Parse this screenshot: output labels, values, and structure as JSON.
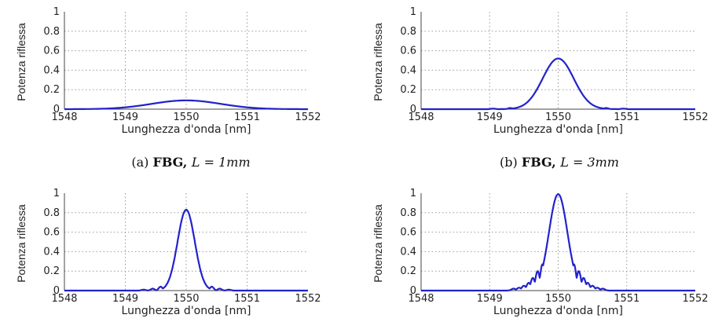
{
  "chart_data": [
    {
      "type": "line",
      "caption_id": "(a)",
      "caption_label": "FBG,",
      "caption_eq": "L = 1mm",
      "xlabel": "Lunghezza d'onda [nm]",
      "ylabel": "Potenza riflessa",
      "xlim": [
        1548,
        1552
      ],
      "ylim": [
        0,
        1
      ],
      "xticks": [
        "1548",
        "1549",
        "1550",
        "1551",
        "1552"
      ],
      "yticks": [
        "0",
        "0.2",
        "0.4",
        "0.6",
        "0.8",
        "1"
      ],
      "grid": true,
      "series": [
        {
          "peak": 0.09,
          "center": 1550,
          "halfwidth": 0.8,
          "sidelobes": []
        }
      ]
    },
    {
      "type": "line",
      "caption_id": "(b)",
      "caption_label": "FBG,",
      "caption_eq": "L = 3mm",
      "xlabel": "Lunghezza d'onda [nm]",
      "ylabel": "Potenza riflessa",
      "xlim": [
        1548,
        1552
      ],
      "ylim": [
        0,
        1
      ],
      "xticks": [
        "1548",
        "1549",
        "1550",
        "1551",
        "1552"
      ],
      "yticks": [
        "0",
        "0.2",
        "0.4",
        "0.6",
        "0.8",
        "1"
      ],
      "grid": true,
      "series": [
        {
          "peak": 0.52,
          "center": 1550,
          "halfwidth": 0.32,
          "sidelobes": [
            [
              1549.55,
              0.03
            ],
            [
              1550.45,
              0.03
            ],
            [
              1549.3,
              0.012
            ],
            [
              1550.7,
              0.012
            ],
            [
              1549.05,
              0.006
            ],
            [
              1550.95,
              0.006
            ]
          ]
        }
      ]
    },
    {
      "type": "line",
      "caption_id": "",
      "caption_label": "",
      "caption_eq": "",
      "xlabel": "Lunghezza d'onda [nm]",
      "ylabel": "Potenza riflessa",
      "xlim": [
        1548,
        1552
      ],
      "ylim": [
        0,
        1
      ],
      "xticks": [
        "1548",
        "1549",
        "1550",
        "1551",
        "1552"
      ],
      "yticks": [
        "0",
        "0.2",
        "0.4",
        "0.6",
        "0.8",
        "1"
      ],
      "grid": true,
      "series": [
        {
          "peak": 0.83,
          "center": 1550,
          "halfwidth": 0.2,
          "sidelobes": [
            [
              1549.73,
              0.1
            ],
            [
              1550.27,
              0.1
            ],
            [
              1549.58,
              0.04
            ],
            [
              1550.42,
              0.04
            ],
            [
              1549.45,
              0.02
            ],
            [
              1550.55,
              0.02
            ],
            [
              1549.3,
              0.01
            ],
            [
              1550.7,
              0.01
            ]
          ]
        }
      ]
    },
    {
      "type": "line",
      "caption_id": "",
      "caption_label": "",
      "caption_eq": "",
      "xlabel": "Lunghezza d'onda [nm]",
      "ylabel": "Potenza riflessa",
      "xlim": [
        1548,
        1552
      ],
      "ylim": [
        0,
        1
      ],
      "xticks": [
        "1548",
        "1549",
        "1550",
        "1551",
        "1552"
      ],
      "yticks": [
        "0",
        "0.2",
        "0.4",
        "0.6",
        "0.8",
        "1"
      ],
      "grid": true,
      "series": [
        {
          "peak": 0.99,
          "center": 1550,
          "halfwidth": 0.19,
          "sidelobes": [
            [
              1549.77,
              0.27
            ],
            [
              1550.23,
              0.27
            ],
            [
              1549.7,
              0.2
            ],
            [
              1550.3,
              0.2
            ],
            [
              1549.63,
              0.13
            ],
            [
              1550.37,
              0.13
            ],
            [
              1549.57,
              0.08
            ],
            [
              1550.43,
              0.08
            ],
            [
              1549.5,
              0.05
            ],
            [
              1550.5,
              0.05
            ],
            [
              1549.43,
              0.03
            ],
            [
              1550.57,
              0.03
            ],
            [
              1549.35,
              0.02
            ],
            [
              1550.65,
              0.02
            ]
          ]
        }
      ]
    }
  ]
}
